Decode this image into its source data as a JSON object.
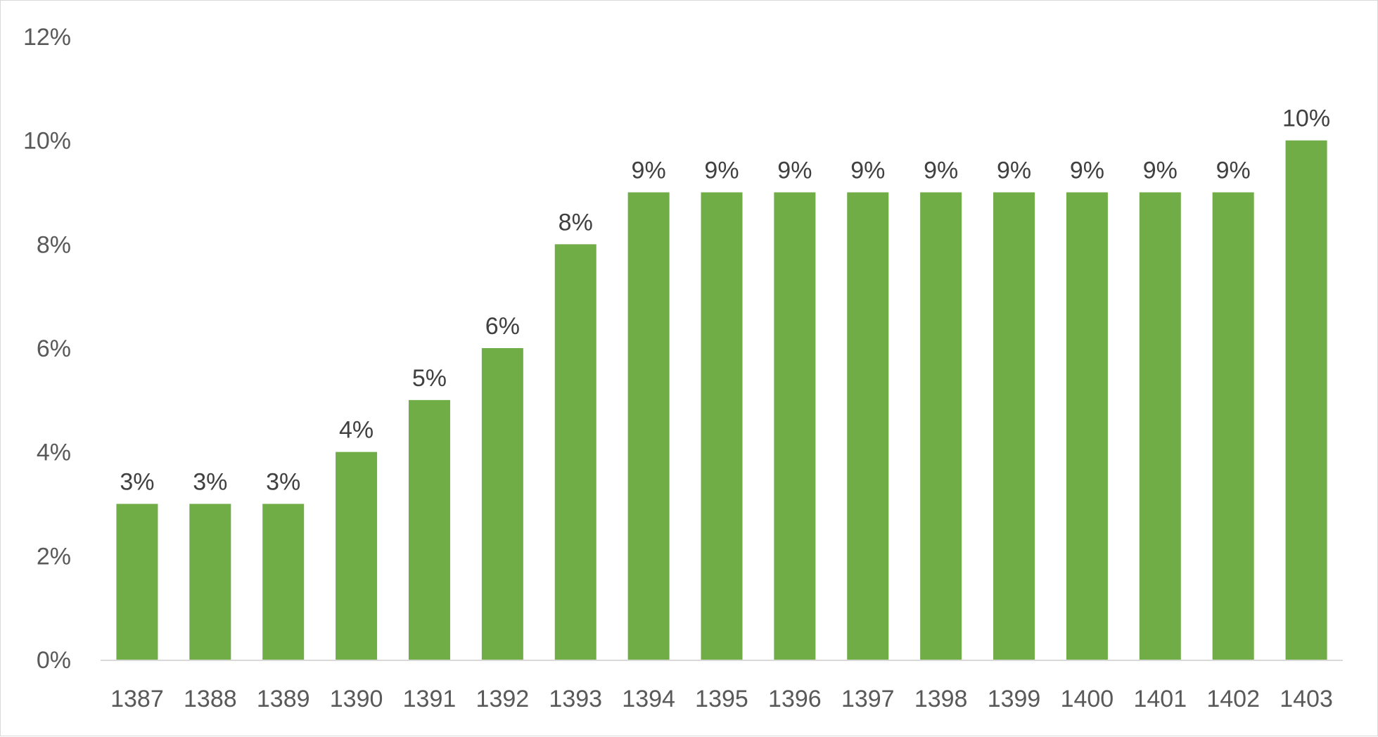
{
  "chart_data": {
    "type": "bar",
    "title": "",
    "xlabel": "",
    "ylabel": "",
    "categories": [
      "1387",
      "1388",
      "1389",
      "1390",
      "1391",
      "1392",
      "1393",
      "1394",
      "1395",
      "1396",
      "1397",
      "1398",
      "1399",
      "1400",
      "1401",
      "1402",
      "1403"
    ],
    "values": [
      3,
      3,
      3,
      4,
      5,
      6,
      8,
      9,
      9,
      9,
      9,
      9,
      9,
      9,
      9,
      9,
      10
    ],
    "data_labels": [
      "3%",
      "3%",
      "3%",
      "4%",
      "5%",
      "6%",
      "8%",
      "9%",
      "9%",
      "9%",
      "9%",
      "9%",
      "9%",
      "9%",
      "9%",
      "9%",
      "10%"
    ],
    "y_ticks": [
      0,
      2,
      4,
      6,
      8,
      10,
      12
    ],
    "y_tick_labels": [
      "0%",
      "2%",
      "4%",
      "6%",
      "8%",
      "10%",
      "12%"
    ],
    "ylim": [
      0,
      12
    ],
    "grid": false,
    "legend": "none",
    "bar_color": "#70AD47",
    "axis_color": "#D9D9D9"
  }
}
